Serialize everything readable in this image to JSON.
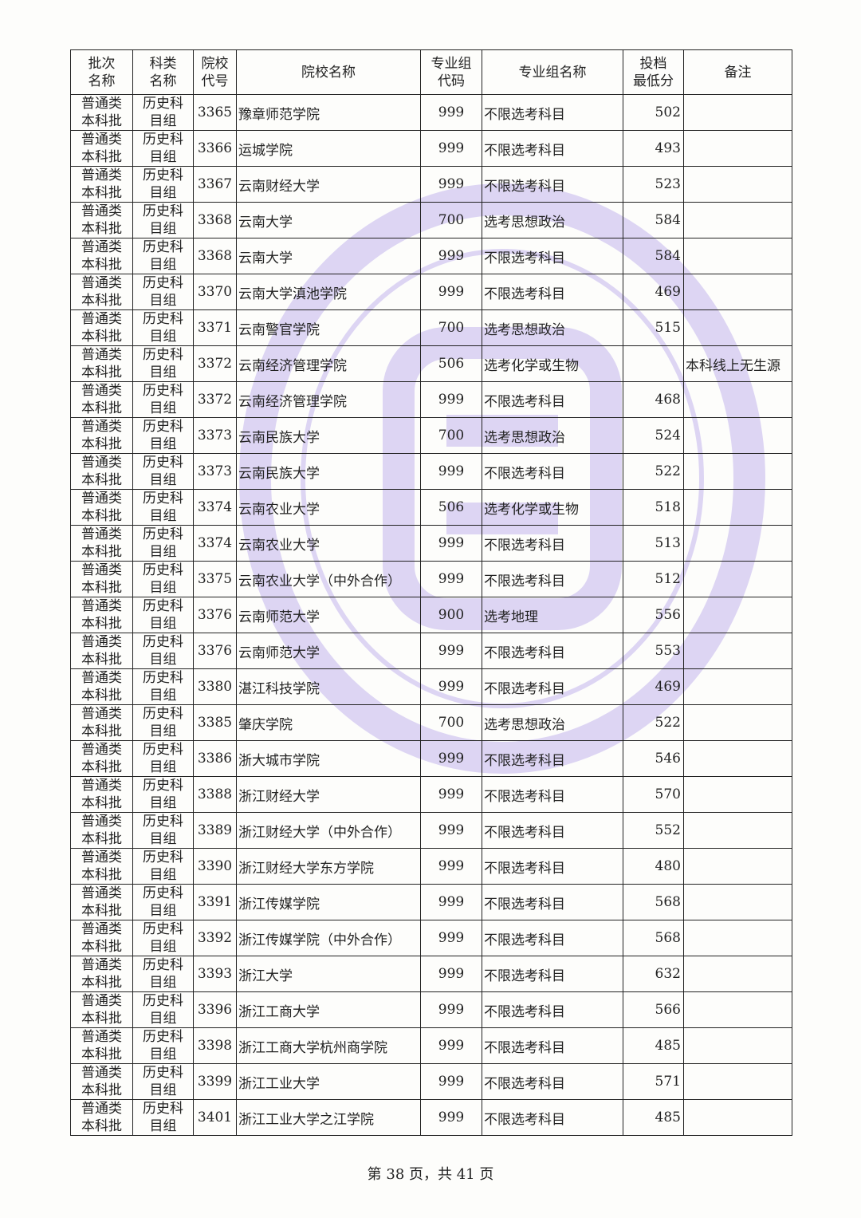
{
  "header": {
    "batch": "批次\n名称",
    "category": "科类\n名称",
    "school_code": "院校\n代号",
    "school_name": "院校名称",
    "group_code": "专业组\n代码",
    "group_name": "专业组名称",
    "min_score": "投档\n最低分",
    "note": "备注"
  },
  "watermark_color": "#b8a8e6",
  "rows": [
    {
      "batch": "普通类本科批",
      "category": "历史科目组",
      "school_code": "3365",
      "school_name": "豫章师范学院",
      "group_code": "999",
      "group_name": "不限选考科目",
      "min_score": "502",
      "note": ""
    },
    {
      "batch": "普通类本科批",
      "category": "历史科目组",
      "school_code": "3366",
      "school_name": "运城学院",
      "group_code": "999",
      "group_name": "不限选考科目",
      "min_score": "493",
      "note": ""
    },
    {
      "batch": "普通类本科批",
      "category": "历史科目组",
      "school_code": "3367",
      "school_name": "云南财经大学",
      "group_code": "999",
      "group_name": "不限选考科目",
      "min_score": "523",
      "note": ""
    },
    {
      "batch": "普通类本科批",
      "category": "历史科目组",
      "school_code": "3368",
      "school_name": "云南大学",
      "group_code": "700",
      "group_name": "选考思想政治",
      "min_score": "584",
      "note": ""
    },
    {
      "batch": "普通类本科批",
      "category": "历史科目组",
      "school_code": "3368",
      "school_name": "云南大学",
      "group_code": "999",
      "group_name": "不限选考科目",
      "min_score": "584",
      "note": ""
    },
    {
      "batch": "普通类本科批",
      "category": "历史科目组",
      "school_code": "3370",
      "school_name": "云南大学滇池学院",
      "group_code": "999",
      "group_name": "不限选考科目",
      "min_score": "469",
      "note": ""
    },
    {
      "batch": "普通类本科批",
      "category": "历史科目组",
      "school_code": "3371",
      "school_name": "云南警官学院",
      "group_code": "700",
      "group_name": "选考思想政治",
      "min_score": "515",
      "note": ""
    },
    {
      "batch": "普通类本科批",
      "category": "历史科目组",
      "school_code": "3372",
      "school_name": "云南经济管理学院",
      "group_code": "506",
      "group_name": "选考化学或生物",
      "min_score": "",
      "note": "本科线上无生源"
    },
    {
      "batch": "普通类本科批",
      "category": "历史科目组",
      "school_code": "3372",
      "school_name": "云南经济管理学院",
      "group_code": "999",
      "group_name": "不限选考科目",
      "min_score": "468",
      "note": ""
    },
    {
      "batch": "普通类本科批",
      "category": "历史科目组",
      "school_code": "3373",
      "school_name": "云南民族大学",
      "group_code": "700",
      "group_name": "选考思想政治",
      "min_score": "524",
      "note": ""
    },
    {
      "batch": "普通类本科批",
      "category": "历史科目组",
      "school_code": "3373",
      "school_name": "云南民族大学",
      "group_code": "999",
      "group_name": "不限选考科目",
      "min_score": "522",
      "note": ""
    },
    {
      "batch": "普通类本科批",
      "category": "历史科目组",
      "school_code": "3374",
      "school_name": "云南农业大学",
      "group_code": "506",
      "group_name": "选考化学或生物",
      "min_score": "518",
      "note": ""
    },
    {
      "batch": "普通类本科批",
      "category": "历史科目组",
      "school_code": "3374",
      "school_name": "云南农业大学",
      "group_code": "999",
      "group_name": "不限选考科目",
      "min_score": "513",
      "note": ""
    },
    {
      "batch": "普通类本科批",
      "category": "历史科目组",
      "school_code": "3375",
      "school_name": "云南农业大学（中外合作）",
      "group_code": "999",
      "group_name": "不限选考科目",
      "min_score": "512",
      "note": ""
    },
    {
      "batch": "普通类本科批",
      "category": "历史科目组",
      "school_code": "3376",
      "school_name": "云南师范大学",
      "group_code": "900",
      "group_name": "选考地理",
      "min_score": "556",
      "note": ""
    },
    {
      "batch": "普通类本科批",
      "category": "历史科目组",
      "school_code": "3376",
      "school_name": "云南师范大学",
      "group_code": "999",
      "group_name": "不限选考科目",
      "min_score": "553",
      "note": ""
    },
    {
      "batch": "普通类本科批",
      "category": "历史科目组",
      "school_code": "3380",
      "school_name": "湛江科技学院",
      "group_code": "999",
      "group_name": "不限选考科目",
      "min_score": "469",
      "note": ""
    },
    {
      "batch": "普通类本科批",
      "category": "历史科目组",
      "school_code": "3385",
      "school_name": "肇庆学院",
      "group_code": "700",
      "group_name": "选考思想政治",
      "min_score": "522",
      "note": ""
    },
    {
      "batch": "普通类本科批",
      "category": "历史科目组",
      "school_code": "3386",
      "school_name": "浙大城市学院",
      "group_code": "999",
      "group_name": "不限选考科目",
      "min_score": "546",
      "note": ""
    },
    {
      "batch": "普通类本科批",
      "category": "历史科目组",
      "school_code": "3388",
      "school_name": "浙江财经大学",
      "group_code": "999",
      "group_name": "不限选考科目",
      "min_score": "570",
      "note": ""
    },
    {
      "batch": "普通类本科批",
      "category": "历史科目组",
      "school_code": "3389",
      "school_name": "浙江财经大学（中外合作）",
      "group_code": "999",
      "group_name": "不限选考科目",
      "min_score": "552",
      "note": ""
    },
    {
      "batch": "普通类本科批",
      "category": "历史科目组",
      "school_code": "3390",
      "school_name": "浙江财经大学东方学院",
      "group_code": "999",
      "group_name": "不限选考科目",
      "min_score": "480",
      "note": ""
    },
    {
      "batch": "普通类本科批",
      "category": "历史科目组",
      "school_code": "3391",
      "school_name": "浙江传媒学院",
      "group_code": "999",
      "group_name": "不限选考科目",
      "min_score": "568",
      "note": ""
    },
    {
      "batch": "普通类本科批",
      "category": "历史科目组",
      "school_code": "3392",
      "school_name": "浙江传媒学院（中外合作）",
      "group_code": "999",
      "group_name": "不限选考科目",
      "min_score": "568",
      "note": ""
    },
    {
      "batch": "普通类本科批",
      "category": "历史科目组",
      "school_code": "3393",
      "school_name": "浙江大学",
      "group_code": "999",
      "group_name": "不限选考科目",
      "min_score": "632",
      "note": ""
    },
    {
      "batch": "普通类本科批",
      "category": "历史科目组",
      "school_code": "3396",
      "school_name": "浙江工商大学",
      "group_code": "999",
      "group_name": "不限选考科目",
      "min_score": "566",
      "note": ""
    },
    {
      "batch": "普通类本科批",
      "category": "历史科目组",
      "school_code": "3398",
      "school_name": "浙江工商大学杭州商学院",
      "group_code": "999",
      "group_name": "不限选考科目",
      "min_score": "485",
      "note": ""
    },
    {
      "batch": "普通类本科批",
      "category": "历史科目组",
      "school_code": "3399",
      "school_name": "浙江工业大学",
      "group_code": "999",
      "group_name": "不限选考科目",
      "min_score": "571",
      "note": ""
    },
    {
      "batch": "普通类本科批",
      "category": "历史科目组",
      "school_code": "3401",
      "school_name": "浙江工业大学之江学院",
      "group_code": "999",
      "group_name": "不限选考科目",
      "min_score": "485",
      "note": ""
    }
  ],
  "footer": "第 38 页，共 41 页"
}
